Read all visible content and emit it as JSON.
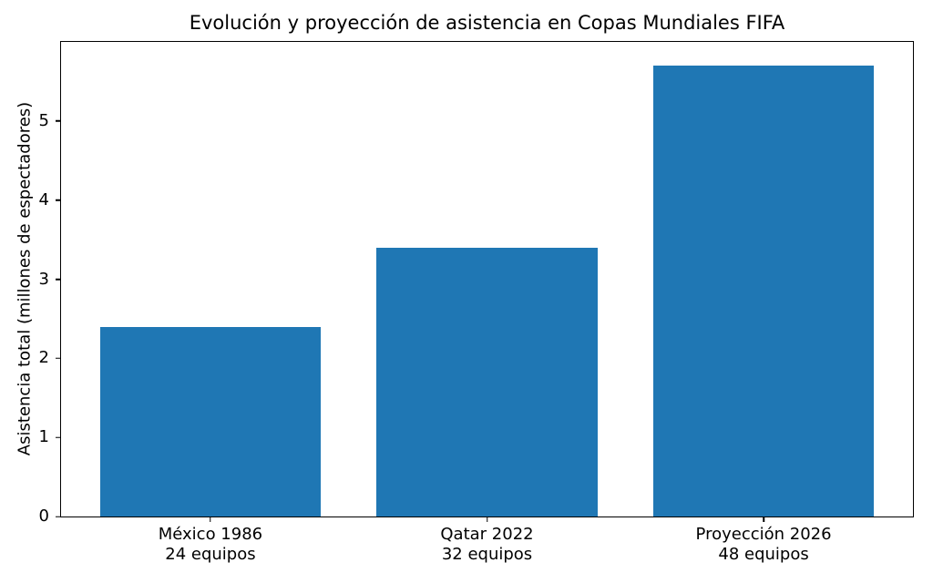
{
  "chart_data": {
    "type": "bar",
    "title": "Evolución y proyección de asistencia en Copas Mundiales FIFA",
    "xlabel": "",
    "ylabel": "Asistencia total (millones de espectadores)",
    "categories": [
      "México 1986",
      "Qatar 2022",
      "Proyección 2026"
    ],
    "category_sublabels": [
      "24 equipos",
      "32 equipos",
      "48 equipos"
    ],
    "values": [
      2.4,
      3.4,
      5.7
    ],
    "ylim": [
      0,
      6
    ],
    "yticks": [
      0,
      1,
      2,
      3,
      4,
      5
    ],
    "bar_color": "#1f77b4",
    "bar_width": 0.8,
    "grid": false,
    "legend": false,
    "background_color": "#ffffff",
    "spine_color": "#000000"
  }
}
